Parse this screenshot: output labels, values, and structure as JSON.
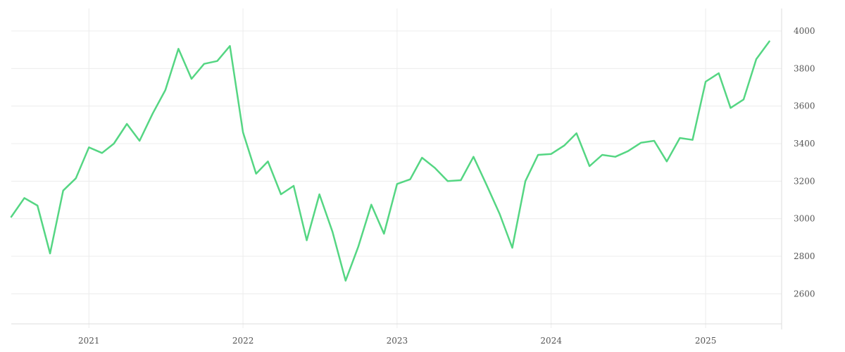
{
  "chart_data": {
    "type": "line",
    "title": "",
    "xlabel": "",
    "ylabel": "",
    "x_tick_labels": [
      {
        "label": "2021",
        "date": "2021-01-01"
      },
      {
        "label": "2022",
        "date": "2022-01-01"
      },
      {
        "label": "2023",
        "date": "2023-01-01"
      },
      {
        "label": "2024",
        "date": "2024-01-01"
      },
      {
        "label": "2025",
        "date": "2025-01-01"
      }
    ],
    "y_ticks": [
      2600,
      2800,
      3000,
      3200,
      3400,
      3600,
      3800,
      4000
    ],
    "xlim": [
      "2020-07-01",
      "2025-06-30"
    ],
    "ylim": [
      2440,
      4120
    ],
    "grid": true,
    "y_axis_position": "right",
    "colors": {
      "series": "#55d683",
      "grid": "#ececec",
      "text": "#555555"
    },
    "series": [
      {
        "x": [
          "2020-07",
          "2020-08",
          "2020-09",
          "2020-10",
          "2020-11",
          "2020-12",
          "2021-01",
          "2021-02",
          "2021-03",
          "2021-04",
          "2021-05",
          "2021-06",
          "2021-07",
          "2021-08",
          "2021-09",
          "2021-10",
          "2021-11",
          "2021-12",
          "2022-01",
          "2022-02",
          "2022-03",
          "2022-04",
          "2022-05",
          "2022-06",
          "2022-07",
          "2022-08",
          "2022-09",
          "2022-10",
          "2022-11",
          "2022-12",
          "2023-01",
          "2023-02",
          "2023-03",
          "2023-04",
          "2023-05",
          "2023-06",
          "2023-07",
          "2023-08",
          "2023-09",
          "2023-10",
          "2023-11",
          "2023-12",
          "2024-01",
          "2024-02",
          "2024-03",
          "2024-04",
          "2024-05",
          "2024-06",
          "2024-07",
          "2024-08",
          "2024-09",
          "2024-10",
          "2024-11",
          "2024-12",
          "2025-01",
          "2025-02",
          "2025-03",
          "2025-04",
          "2025-05",
          "2025-06"
        ],
        "values": [
          3010,
          3110,
          3070,
          2815,
          3150,
          3215,
          3380,
          3350,
          3400,
          3505,
          3415,
          3560,
          3685,
          3905,
          3745,
          3825,
          3840,
          3920,
          3460,
          3240,
          3305,
          3130,
          3175,
          2885,
          3130,
          2930,
          2670,
          2850,
          3075,
          2920,
          3185,
          3210,
          3325,
          3270,
          3200,
          3205,
          3330,
          3180,
          3025,
          2845,
          3200,
          3340,
          3345,
          3390,
          3455,
          3280,
          3340,
          3330,
          3360,
          3405,
          3415,
          3305,
          3430,
          3420,
          3730,
          3775,
          3590,
          3635,
          3850,
          3945
        ]
      }
    ]
  }
}
